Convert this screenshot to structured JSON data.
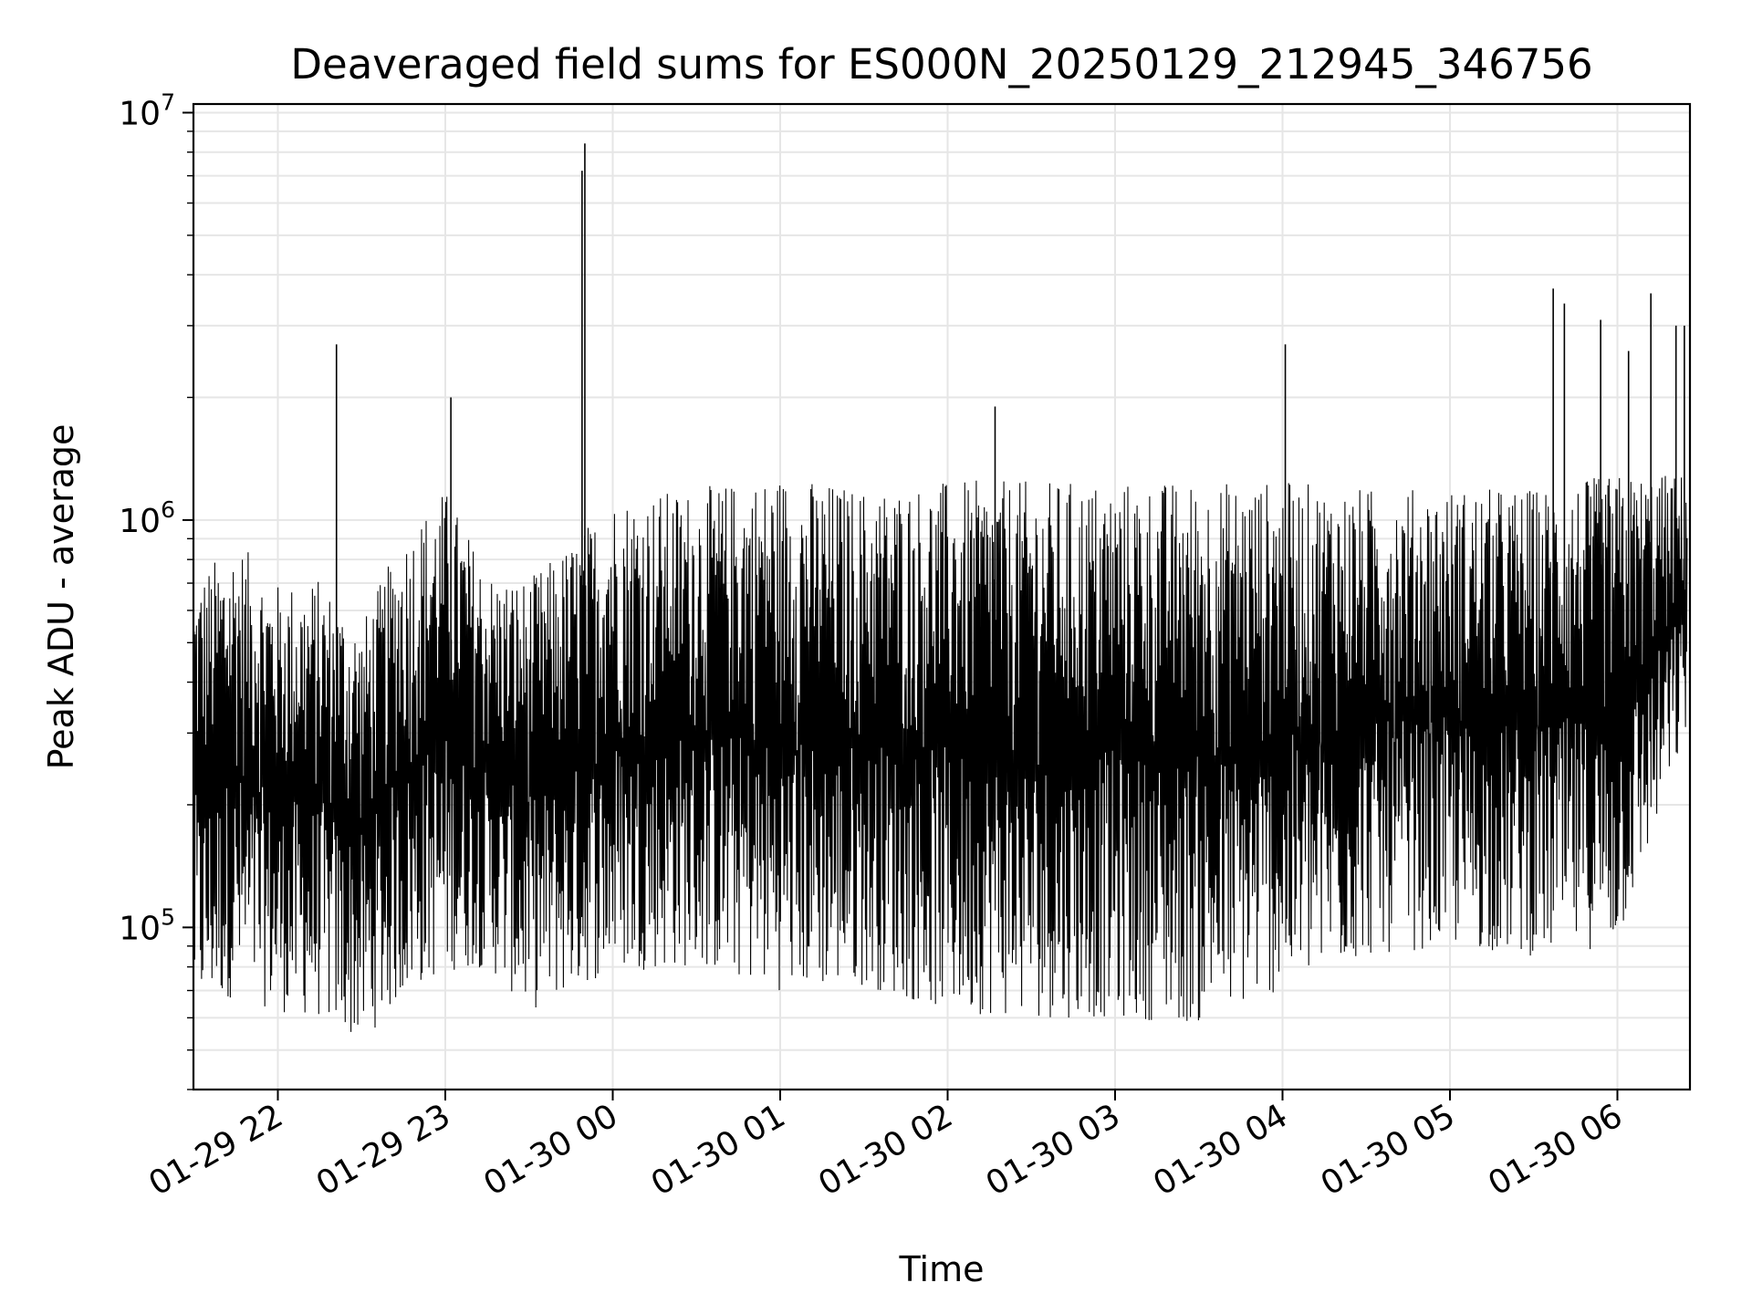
{
  "chart_data": {
    "type": "line",
    "title": "Deaveraged field sums for ES000N_20250129_212945_346756",
    "xlabel": "Time",
    "ylabel": "Peak ADU - average",
    "x_scale": "time",
    "y_scale": "log",
    "xlim": [
      "2025-01-29 21:29:45",
      "2025-01-30 06:26:00"
    ],
    "ylim": [
      40000,
      10500000
    ],
    "grid": true,
    "legend": "none",
    "x_ticks": [
      {
        "value": "2025-01-29 22:00",
        "label": "01-29 22"
      },
      {
        "value": "2025-01-29 23:00",
        "label": "01-29 23"
      },
      {
        "value": "2025-01-30 00:00",
        "label": "01-30 00"
      },
      {
        "value": "2025-01-30 01:00",
        "label": "01-30 01"
      },
      {
        "value": "2025-01-30 02:00",
        "label": "01-30 02"
      },
      {
        "value": "2025-01-30 03:00",
        "label": "01-30 03"
      },
      {
        "value": "2025-01-30 04:00",
        "label": "01-30 04"
      },
      {
        "value": "2025-01-30 05:00",
        "label": "01-30 05"
      },
      {
        "value": "2025-01-30 06:00",
        "label": "01-30 06"
      }
    ],
    "y_ticks": [
      {
        "value": 100000,
        "base": "10",
        "exp": "5"
      },
      {
        "value": 1000000,
        "base": "10",
        "exp": "6"
      },
      {
        "value": 10000000,
        "base": "10",
        "exp": "7"
      }
    ],
    "series": [
      {
        "color": "#000000",
        "envelope": [
          {
            "x": "2025-01-29 21:30",
            "low": 62000,
            "high": 720000
          },
          {
            "x": "2025-01-29 21:45",
            "low": 68000,
            "high": 900000
          },
          {
            "x": "2025-01-29 22:00",
            "low": 62000,
            "high": 700000
          },
          {
            "x": "2025-01-29 22:15",
            "low": 60000,
            "high": 720000
          },
          {
            "x": "2025-01-29 22:30",
            "low": 52000,
            "high": 560000
          },
          {
            "x": "2025-01-29 22:45",
            "low": 68000,
            "high": 930000
          },
          {
            "x": "2025-01-29 23:00",
            "low": 78000,
            "high": 1200000
          },
          {
            "x": "2025-01-29 23:15",
            "low": 80000,
            "high": 750000
          },
          {
            "x": "2025-01-29 23:30",
            "low": 62000,
            "high": 720000
          },
          {
            "x": "2025-01-29 23:45",
            "low": 70000,
            "high": 880000
          },
          {
            "x": "2025-01-30 00:00",
            "low": 78000,
            "high": 1150000
          },
          {
            "x": "2025-01-30 00:30",
            "low": 80000,
            "high": 1200000
          },
          {
            "x": "2025-01-30 01:00",
            "low": 70000,
            "high": 1300000
          },
          {
            "x": "2025-01-30 01:30",
            "low": 72000,
            "high": 1200000
          },
          {
            "x": "2025-01-30 02:00",
            "low": 62000,
            "high": 1250000
          },
          {
            "x": "2025-01-30 02:30",
            "low": 60000,
            "high": 1250000
          },
          {
            "x": "2025-01-30 03:00",
            "low": 60000,
            "high": 1250000
          },
          {
            "x": "2025-01-30 03:30",
            "low": 58000,
            "high": 1250000
          },
          {
            "x": "2025-01-30 04:00",
            "low": 70000,
            "high": 1250000
          },
          {
            "x": "2025-01-30 04:30",
            "low": 85000,
            "high": 1200000
          },
          {
            "x": "2025-01-30 05:00",
            "low": 90000,
            "high": 1200000
          },
          {
            "x": "2025-01-30 05:30",
            "low": 85000,
            "high": 1200000
          },
          {
            "x": "2025-01-30 06:00",
            "low": 90000,
            "high": 1300000
          },
          {
            "x": "2025-01-30 06:25",
            "low": 300000,
            "high": 1300000
          }
        ],
        "spikes": [
          {
            "x": "2025-01-29 22:21",
            "y": 2700000
          },
          {
            "x": "2025-01-29 23:02",
            "y": 2000000
          },
          {
            "x": "2025-01-29 23:49",
            "y": 7200000
          },
          {
            "x": "2025-01-29 23:50",
            "y": 8400000
          },
          {
            "x": "2025-01-30 02:17",
            "y": 1900000
          },
          {
            "x": "2025-01-30 04:01",
            "y": 2700000
          },
          {
            "x": "2025-01-30 05:37",
            "y": 3700000
          },
          {
            "x": "2025-01-30 05:41",
            "y": 3400000
          },
          {
            "x": "2025-01-30 05:54",
            "y": 3100000
          },
          {
            "x": "2025-01-30 06:04",
            "y": 2600000
          },
          {
            "x": "2025-01-30 06:12",
            "y": 3600000
          },
          {
            "x": "2025-01-30 06:21",
            "y": 3000000
          },
          {
            "x": "2025-01-30 06:24",
            "y": 3000000
          }
        ]
      }
    ]
  }
}
